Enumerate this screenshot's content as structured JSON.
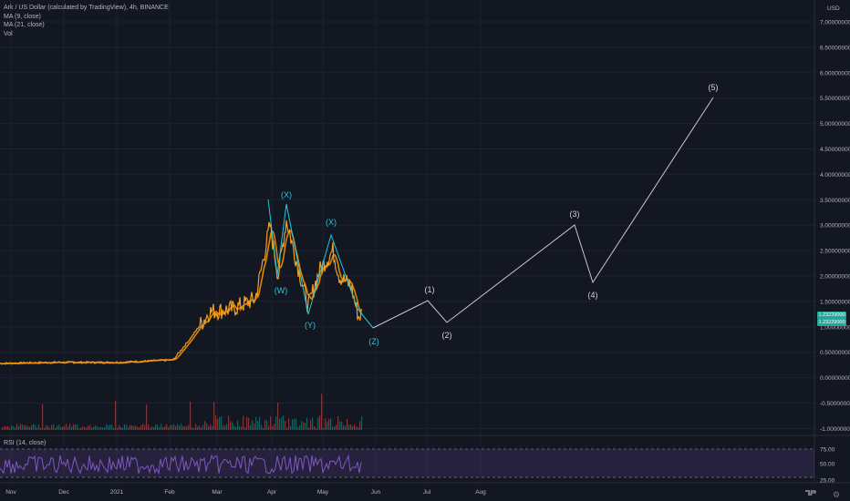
{
  "legend": {
    "symbol": "Ark / US Dollar (calculated by TradingView), 4h, BINANCE",
    "ma1": "MA (9, close)",
    "ma2": "MA (21, close)",
    "vol": "Vol"
  },
  "rsi_legend": "RSI (14, close)",
  "currency": "USD",
  "price_badges": [
    "1.23229000",
    "1.23229000"
  ],
  "price_axis": [
    "7.00000000",
    "6.50000000",
    "6.00000000",
    "5.50000000",
    "5.00000000",
    "4.50000000",
    "4.00000000",
    "3.50000000",
    "3.00000000",
    "2.50000000",
    "2.00000000",
    "1.50000000",
    "1.00000000",
    "0.50000000",
    "0.00000000",
    "-0.50000000",
    "-1.00000000"
  ],
  "rsi_axis": [
    "75.00",
    "50.00",
    "25.00"
  ],
  "time_axis": [
    "Nov",
    "Dec",
    "2021",
    "Feb",
    "Mar",
    "Apr",
    "May",
    "Jun",
    "Jul",
    "Aug"
  ],
  "wave_labels": {
    "corrective": [
      "(X)",
      "(W)",
      "(Y)",
      "(X)",
      "(Z)"
    ],
    "impulse": [
      "(1)",
      "(2)",
      "(3)",
      "(4)",
      "(5)"
    ]
  },
  "colors": {
    "background": "#131722",
    "price_line": "#f0a020",
    "ma_line": "#ff9800",
    "corrective_waves": "#26c6da",
    "projection": "#c8c8c8",
    "rsi": "#7e57c2",
    "badge": "#26a69a"
  },
  "chart_data": {
    "type": "line",
    "title": "Ark / US Dollar (calculated by TradingView), 4h, BINANCE",
    "ylim": [
      -1.0,
      7.2
    ],
    "x": [
      "Nov",
      "Dec",
      "2021",
      "Feb",
      "Mar",
      "Apr",
      "May",
      "Jun",
      "Jul",
      "Aug"
    ],
    "projection_points": [
      {
        "label": "(Z)",
        "y": 1.0
      },
      {
        "label": "(1)",
        "y": 1.55
      },
      {
        "label": "(2)",
        "y": 1.1
      },
      {
        "label": "(3)",
        "y": 3.0
      },
      {
        "label": "(4)",
        "y": 1.9
      },
      {
        "label": "(5)",
        "y": 5.5
      }
    ],
    "corrective_points": [
      {
        "label": "(X)",
        "y": 3.4
      },
      {
        "label": "(W)",
        "y": 2.0
      },
      {
        "label": "(Y)",
        "y": 1.35
      },
      {
        "label": "(X)",
        "y": 2.85
      },
      {
        "label": "(Z)",
        "y": 1.0
      }
    ],
    "rsi_levels": [
      75,
      50,
      25
    ]
  }
}
